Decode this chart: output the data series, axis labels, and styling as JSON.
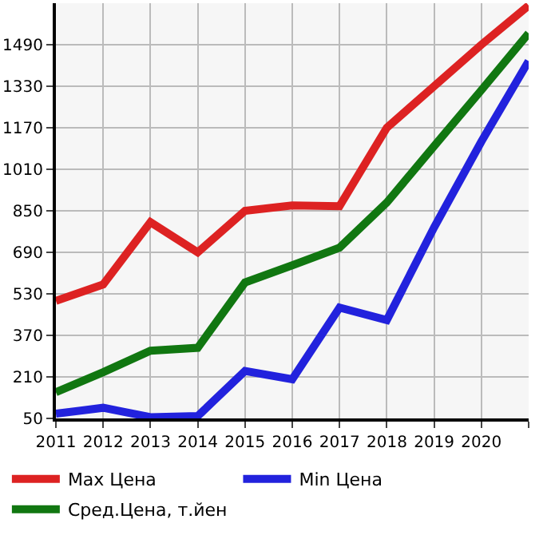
{
  "chart_data": {
    "type": "line",
    "x": [
      2011,
      2012,
      2013,
      2014,
      2015,
      2016,
      2017,
      2018,
      2019,
      2020,
      2021
    ],
    "series": [
      {
        "name": "Max Цена",
        "color": "#dd2222",
        "values": [
          503,
          566,
          806,
          690,
          850,
          871,
          868,
          1170,
          1330,
          1490,
          1641
        ]
      },
      {
        "name": "Min Цена",
        "color": "#2222dd",
        "values": [
          68,
          91,
          55,
          59,
          233,
          201,
          477,
          429,
          786,
          1117,
          1427
        ]
      },
      {
        "name": "Сред.Цена, т.йен",
        "color": "#117711",
        "values": [
          151,
          228,
          311,
          322,
          574,
          640,
          708,
          882,
          1099,
          1315,
          1534
        ]
      }
    ],
    "xlim": [
      2011,
      2021
    ],
    "xticks": [
      2011,
      2012,
      2013,
      2014,
      2015,
      2016,
      2017,
      2018,
      2019,
      2020,
      {
        "value": 2021,
        "label": null
      }
    ],
    "ylim": [
      50,
      1650
    ],
    "yticks": [
      50,
      210,
      370,
      530,
      690,
      850,
      1010,
      1170,
      1330,
      1490
    ],
    "grid": true,
    "legend": "bottom",
    "marker": "none",
    "line_style": "solid"
  }
}
